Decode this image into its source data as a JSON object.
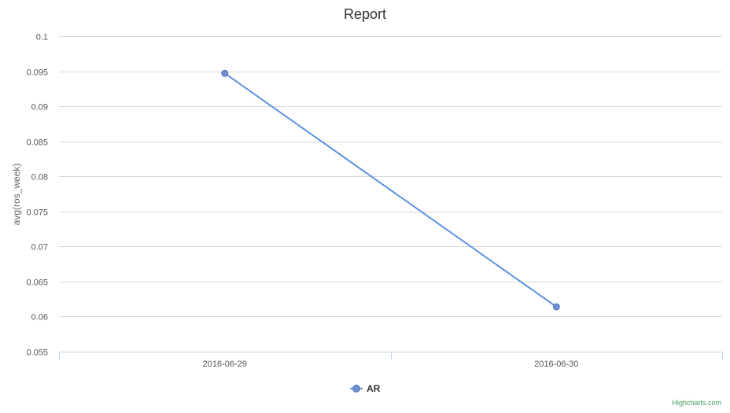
{
  "chart_data": {
    "type": "line",
    "title": "Report",
    "xlabel": "",
    "ylabel": "avg(ros_week)",
    "categories": [
      "2016-06-29",
      "2016-06-30"
    ],
    "series": [
      {
        "name": "AR",
        "values": [
          0.0947,
          0.0614
        ],
        "color": "#5b93e0"
      }
    ],
    "ylim": [
      0.055,
      0.1
    ],
    "yticks": [
      "0.1",
      "0.095",
      "0.09",
      "0.085",
      "0.08",
      "0.075",
      "0.07",
      "0.065",
      "0.06",
      "0.055"
    ],
    "grid": true,
    "legend": "bottom-center"
  },
  "credits": "Highcharts.com",
  "colors": {
    "grid": "#d8d8d8",
    "axis": "#c0d0e0",
    "text": "#555555",
    "title": "#333333",
    "marker_fill": "#6f8fcf",
    "marker_stroke": "#4f72b8",
    "credits": "#3f9f5f"
  }
}
